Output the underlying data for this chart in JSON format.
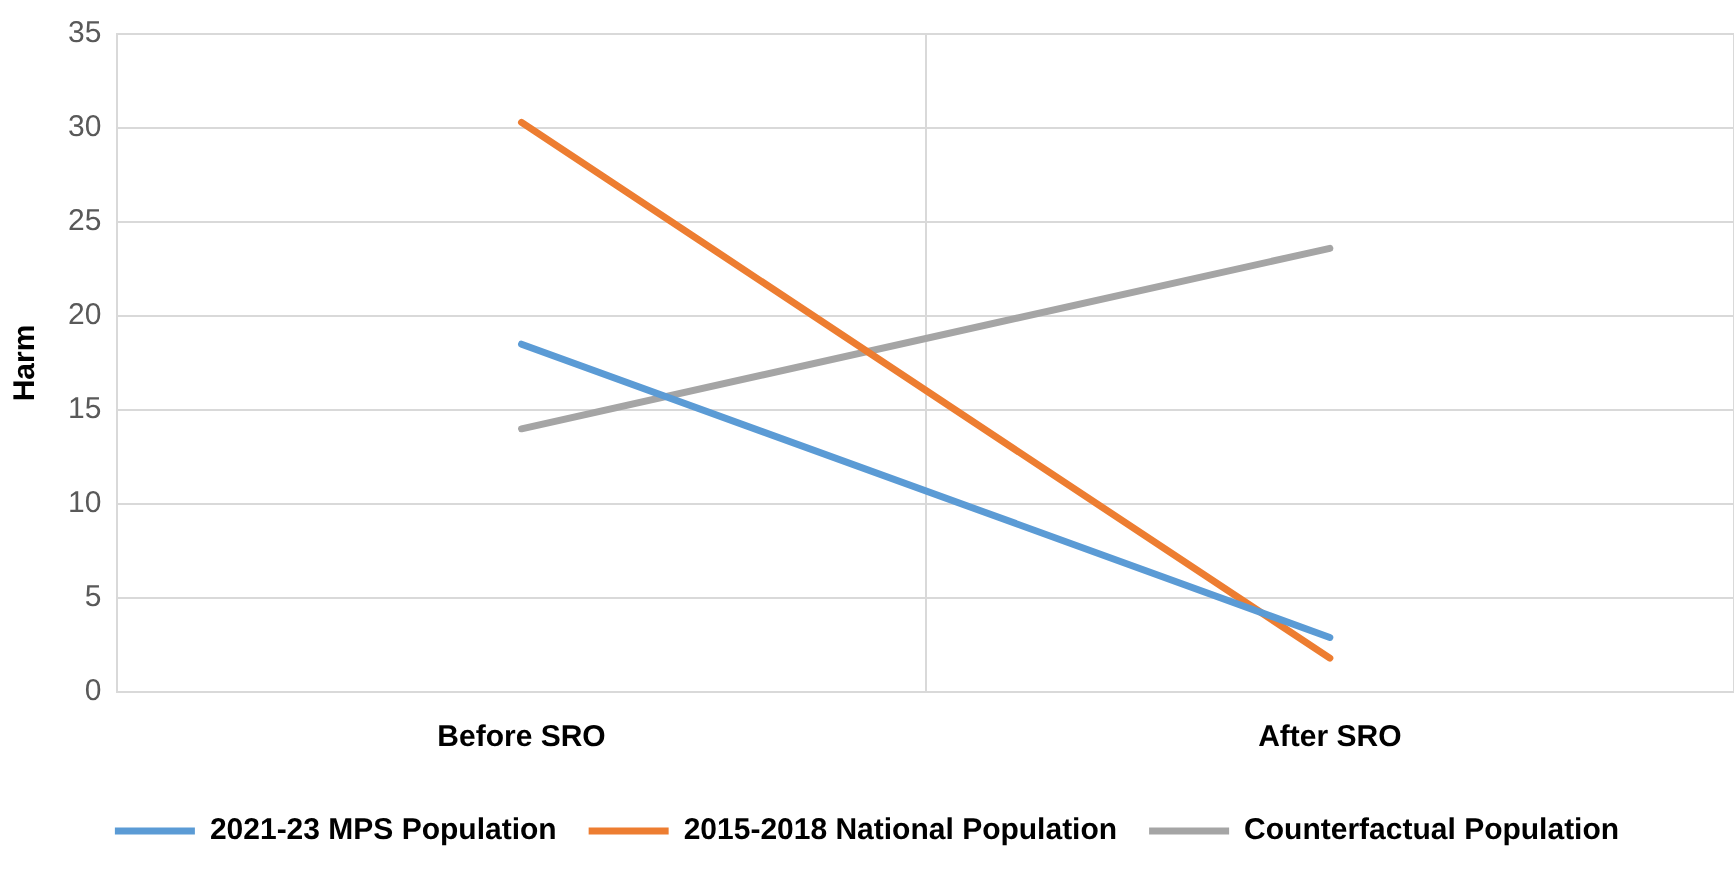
{
  "chart_data": {
    "type": "line",
    "ylabel": "Harm",
    "categories": [
      "Before SRO",
      "After SRO"
    ],
    "series": [
      {
        "name": "2021-23 MPS Population",
        "color": "#5b9bd5",
        "values": [
          18.5,
          2.9
        ]
      },
      {
        "name": "2015-2018 National Population",
        "color": "#ed7d31",
        "values": [
          30.3,
          1.8
        ]
      },
      {
        "name": "Counterfactual Population",
        "color": "#a5a5a5",
        "values": [
          14.0,
          23.6
        ]
      }
    ],
    "ylim": [
      0,
      35
    ],
    "yticks": [
      0,
      5,
      10,
      15,
      20,
      25,
      30,
      35
    ],
    "grid": true,
    "legend": "bottom",
    "marker": "none",
    "line_style": "solid"
  }
}
